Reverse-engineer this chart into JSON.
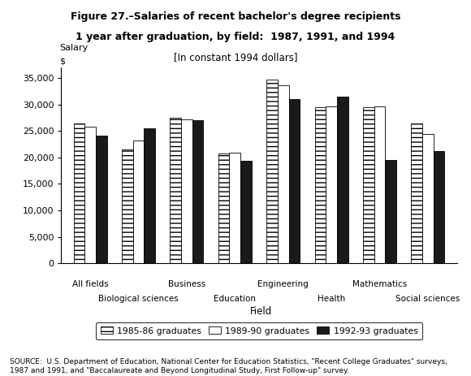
{
  "title_line1": "Figure 27.–Salaries of recent bachelor's degree recipients",
  "title_line2": "1 year after graduation, by field:  1987, 1991, and 1994",
  "subtitle": "[In constant 1994 dollars]",
  "ylabel_top": "Salary",
  "ylabel_unit": "$",
  "xlabel": "Field",
  "categories": [
    "All fields",
    "Biological sciences",
    "Business",
    "Education",
    "Engineering",
    "Health",
    "Mathematics",
    "Social sciences"
  ],
  "series": [
    {
      "name": "1985-86 graduates",
      "values": [
        26500,
        21500,
        27500,
        20800,
        34800,
        29500,
        29500,
        26500
      ],
      "hatch": "---",
      "facecolor": "#ffffff",
      "edgecolor": "#000000"
    },
    {
      "name": "1989-90 graduates",
      "values": [
        25800,
        23200,
        27200,
        20900,
        33700,
        29700,
        29700,
        24500
      ],
      "hatch": "",
      "facecolor": "#ffffff",
      "edgecolor": "#000000"
    },
    {
      "name": "1992-93 graduates",
      "values": [
        24200,
        25500,
        27000,
        19400,
        31000,
        31500,
        19500,
        21300
      ],
      "hatch": "",
      "facecolor": "#1a1a1a",
      "edgecolor": "#000000"
    }
  ],
  "ylim": [
    0,
    37000
  ],
  "yticks": [
    0,
    5000,
    10000,
    15000,
    20000,
    25000,
    30000,
    35000
  ],
  "source_text": "SOURCE:  U.S. Department of Education, National Center for Education Statistics, \"Recent College Graduates\" surveys,\n1987 and 1991, and \"Baccalaureate and Beyond Longitudinal Study, First Follow-up\" survey.",
  "bg_color": "#ffffff"
}
